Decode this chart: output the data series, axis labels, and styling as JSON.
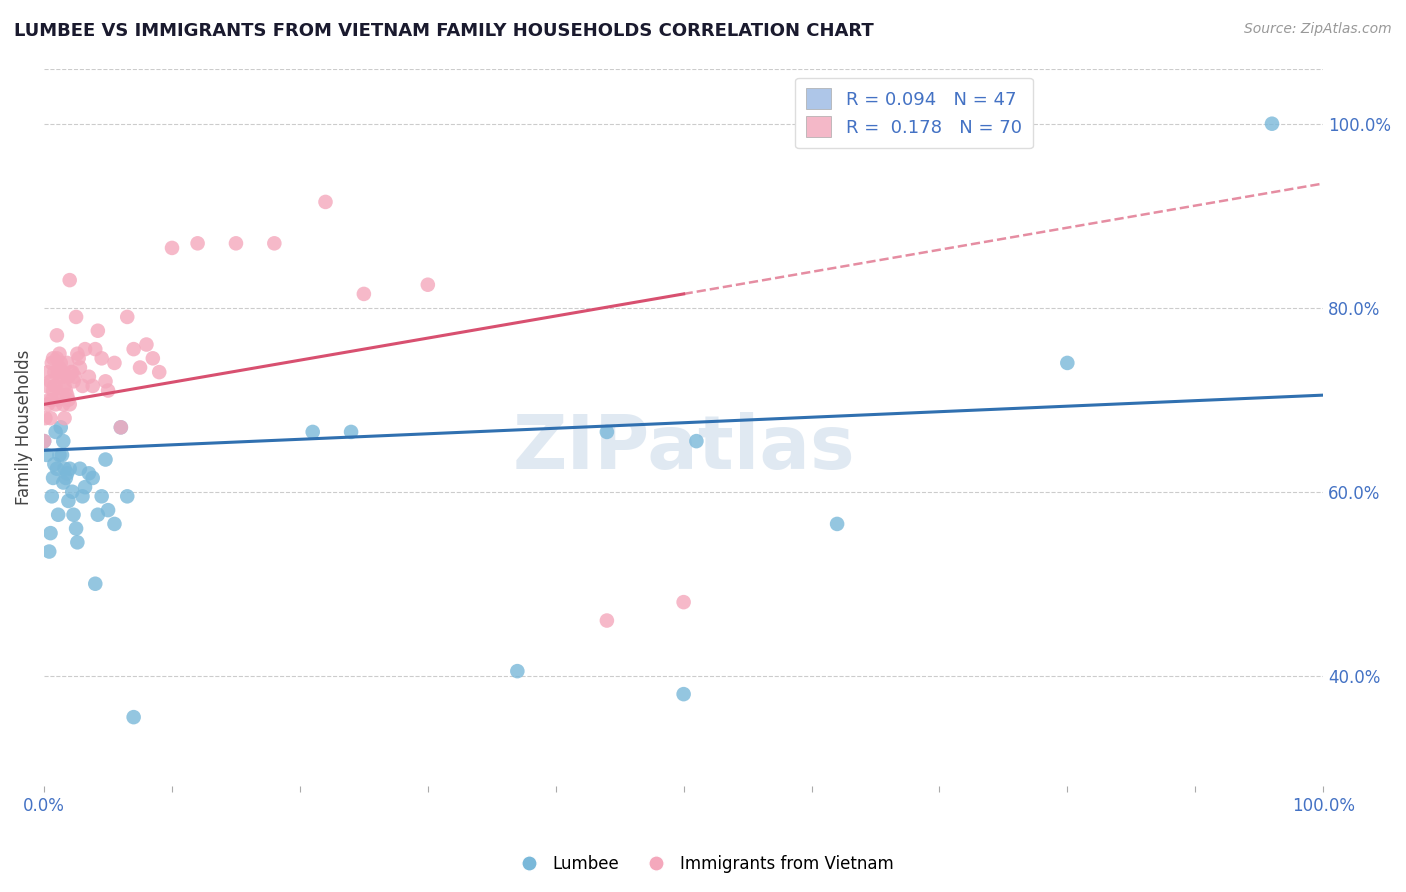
{
  "title": "LUMBEE VS IMMIGRANTS FROM VIETNAM FAMILY HOUSEHOLDS CORRELATION CHART",
  "source": "Source: ZipAtlas.com",
  "ylabel": "Family Households",
  "xlim": [
    0.0,
    1.0
  ],
  "ylim": [
    0.28,
    1.06
  ],
  "y_ticks": [
    0.4,
    0.6,
    0.8,
    1.0
  ],
  "y_tick_labels": [
    "40.0%",
    "60.0%",
    "80.0%",
    "100.0%"
  ],
  "legend_entries": [
    {
      "label": "R = 0.094   N = 47",
      "color": "#aec6e8"
    },
    {
      "label": "R =  0.178   N = 70",
      "color": "#f4b8c8"
    }
  ],
  "lumbee_color": "#7ab8d9",
  "vietnam_color": "#f4a8bc",
  "lumbee_line_color": "#3070b0",
  "vietnam_line_color": "#d85070",
  "watermark": "ZIPatlas",
  "watermark_color": "#c8d8e8",
  "background_color": "#ffffff",
  "grid_color": "#cccccc",
  "tick_color": "#4472c4",
  "lumbee_line_y0": 0.645,
  "lumbee_line_y1": 0.705,
  "vietnam_line_y0": 0.695,
  "vietnam_line_y1_solid": 0.815,
  "vietnam_solid_xend": 0.5,
  "vietnam_line_y1_dashed": 1.01,
  "lumbee_scatter_x": [
    0.0,
    0.002,
    0.004,
    0.005,
    0.006,
    0.007,
    0.008,
    0.009,
    0.01,
    0.011,
    0.012,
    0.013,
    0.014,
    0.015,
    0.015,
    0.016,
    0.017,
    0.018,
    0.019,
    0.02,
    0.022,
    0.023,
    0.025,
    0.026,
    0.028,
    0.03,
    0.032,
    0.035,
    0.038,
    0.04,
    0.042,
    0.045,
    0.048,
    0.05,
    0.055,
    0.06,
    0.065,
    0.07,
    0.21,
    0.24,
    0.37,
    0.44,
    0.5,
    0.51,
    0.62,
    0.8,
    0.96
  ],
  "lumbee_scatter_y": [
    0.655,
    0.64,
    0.535,
    0.555,
    0.595,
    0.615,
    0.63,
    0.665,
    0.625,
    0.575,
    0.64,
    0.67,
    0.64,
    0.61,
    0.655,
    0.625,
    0.615,
    0.62,
    0.59,
    0.625,
    0.6,
    0.575,
    0.56,
    0.545,
    0.625,
    0.595,
    0.605,
    0.62,
    0.615,
    0.5,
    0.575,
    0.595,
    0.635,
    0.58,
    0.565,
    0.67,
    0.595,
    0.355,
    0.665,
    0.665,
    0.405,
    0.665,
    0.38,
    0.655,
    0.565,
    0.74,
    1.0
  ],
  "vietnam_scatter_x": [
    0.0,
    0.001,
    0.002,
    0.003,
    0.003,
    0.004,
    0.005,
    0.005,
    0.006,
    0.006,
    0.007,
    0.007,
    0.008,
    0.008,
    0.009,
    0.009,
    0.01,
    0.01,
    0.011,
    0.011,
    0.012,
    0.012,
    0.013,
    0.013,
    0.014,
    0.015,
    0.015,
    0.016,
    0.016,
    0.017,
    0.018,
    0.018,
    0.019,
    0.019,
    0.02,
    0.02,
    0.021,
    0.022,
    0.023,
    0.024,
    0.025,
    0.026,
    0.027,
    0.028,
    0.03,
    0.032,
    0.035,
    0.038,
    0.04,
    0.042,
    0.045,
    0.048,
    0.05,
    0.055,
    0.06,
    0.065,
    0.07,
    0.075,
    0.08,
    0.085,
    0.09,
    0.1,
    0.12,
    0.15,
    0.18,
    0.22,
    0.25,
    0.3,
    0.44,
    0.5
  ],
  "vietnam_scatter_y": [
    0.655,
    0.68,
    0.715,
    0.695,
    0.73,
    0.7,
    0.68,
    0.72,
    0.7,
    0.74,
    0.745,
    0.71,
    0.715,
    0.73,
    0.695,
    0.715,
    0.745,
    0.77,
    0.7,
    0.73,
    0.735,
    0.75,
    0.725,
    0.74,
    0.705,
    0.695,
    0.725,
    0.68,
    0.715,
    0.71,
    0.705,
    0.74,
    0.725,
    0.7,
    0.695,
    0.83,
    0.73,
    0.73,
    0.72,
    0.725,
    0.79,
    0.75,
    0.745,
    0.735,
    0.715,
    0.755,
    0.725,
    0.715,
    0.755,
    0.775,
    0.745,
    0.72,
    0.71,
    0.74,
    0.67,
    0.79,
    0.755,
    0.735,
    0.76,
    0.745,
    0.73,
    0.865,
    0.87,
    0.87,
    0.87,
    0.915,
    0.815,
    0.825,
    0.46,
    0.48
  ]
}
